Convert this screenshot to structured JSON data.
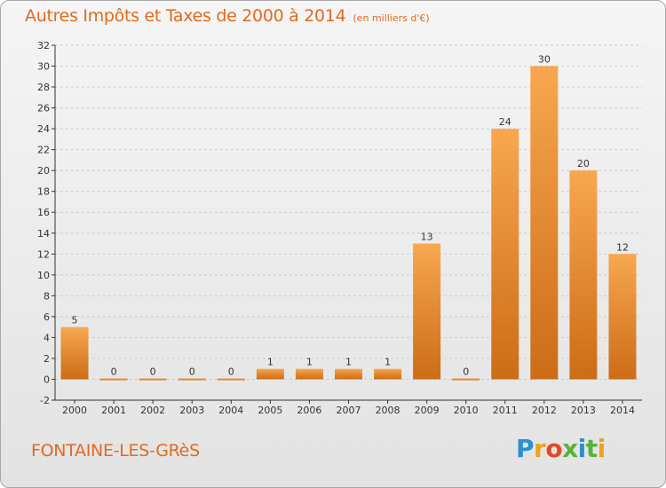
{
  "header": {
    "title": "Autres Impôts et Taxes de 2000 à 2014",
    "unit": "(en milliers d'€)"
  },
  "footer": {
    "commune": "FONTAINE-LES-GRèS",
    "logo_letters": [
      "P",
      "r",
      "o",
      "x",
      "i",
      "t",
      "i"
    ],
    "logo_colors": [
      "#2a8fd6",
      "#f0a21a",
      "#e04a28",
      "#56b33a",
      "#2a8fd6",
      "#56b33a",
      "#f0a21a"
    ]
  },
  "colors": {
    "bar_top": "#f8a750",
    "bar_bottom": "#cc6c16",
    "grid": "#cccccc",
    "axis": "#333333",
    "accent": "#e06a1f"
  },
  "chart_data": {
    "type": "bar",
    "categories": [
      "2000",
      "2001",
      "2002",
      "2003",
      "2004",
      "2005",
      "2006",
      "2007",
      "2008",
      "2009",
      "2010",
      "2011",
      "2012",
      "2013",
      "2014"
    ],
    "values": [
      5,
      0,
      0,
      0,
      0,
      1,
      1,
      1,
      1,
      13,
      0,
      24,
      30,
      20,
      12
    ],
    "data_labels": [
      "5",
      "0",
      "0",
      "0",
      "0",
      "1",
      "1",
      "1",
      "1",
      "13",
      "0",
      "24",
      "30",
      "20",
      "12"
    ],
    "yticks": [
      -2,
      0,
      2,
      4,
      6,
      8,
      10,
      12,
      14,
      16,
      18,
      20,
      22,
      24,
      26,
      28,
      30,
      32
    ],
    "ylim": [
      -2,
      32
    ],
    "grid": "horizontal dashed",
    "legend": "none"
  }
}
